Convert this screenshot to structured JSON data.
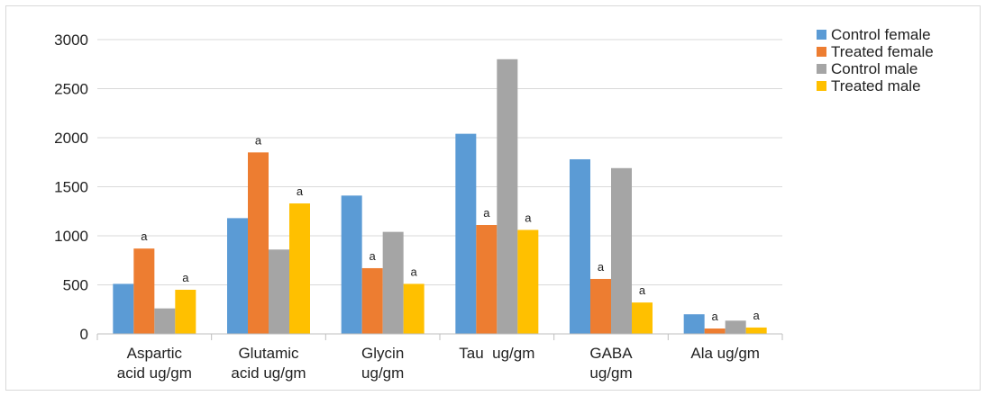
{
  "chart_data": {
    "type": "bar",
    "title": "",
    "xlabel": "",
    "ylabel": "",
    "ylim": [
      0,
      3000
    ],
    "yticks": [
      0,
      500,
      1000,
      1500,
      2000,
      2500,
      3000
    ],
    "grid": true,
    "legend_position": "top-right",
    "categories": [
      [
        "Aspartic",
        "acid ug/gm"
      ],
      [
        "Glutamic",
        "acid ug/gm"
      ],
      [
        "Glycin",
        "ug/gm"
      ],
      [
        "Tau  ug/gm"
      ],
      [
        "GABA",
        "ug/gm"
      ],
      [
        "Ala ug/gm"
      ]
    ],
    "series": [
      {
        "name": "Control female",
        "color": "#5b9bd5",
        "values": [
          510,
          1180,
          1410,
          2040,
          1780,
          200
        ],
        "annotations": [
          "",
          "",
          "",
          "",
          "",
          ""
        ]
      },
      {
        "name": "Treated female",
        "color": "#ed7d31",
        "values": [
          870,
          1850,
          670,
          1110,
          560,
          55
        ],
        "annotations": [
          "a",
          "a",
          "a",
          "a",
          "a",
          "a"
        ]
      },
      {
        "name": "Control male",
        "color": "#a5a5a5",
        "values": [
          260,
          860,
          1040,
          2800,
          1690,
          135
        ],
        "annotations": [
          "",
          "",
          "",
          "",
          "",
          ""
        ]
      },
      {
        "name": "Treated male",
        "color": "#ffc000",
        "values": [
          450,
          1330,
          510,
          1060,
          320,
          65
        ],
        "annotations": [
          "a",
          "a",
          "a",
          "a",
          "a",
          "a"
        ]
      }
    ]
  }
}
